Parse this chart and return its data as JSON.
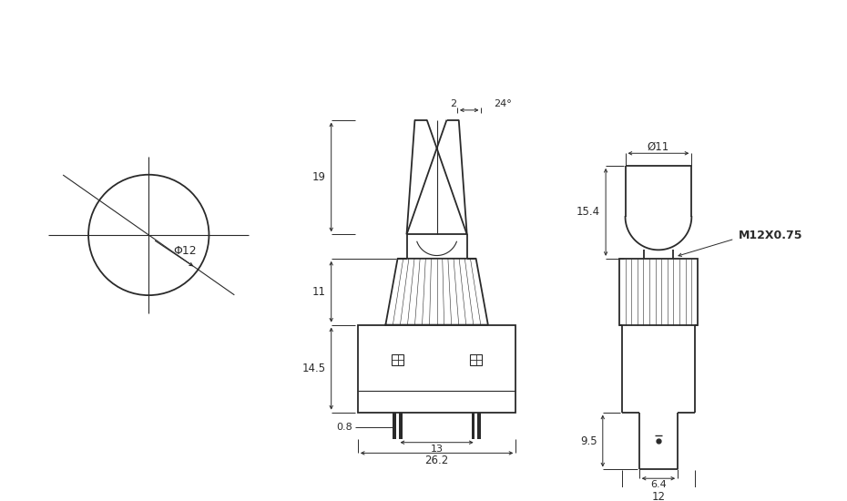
{
  "bg_color": "#ffffff",
  "line_color": "#2a2a2a",
  "dim_color": "#2a2a2a",
  "lw": 1.3,
  "thin_lw": 0.8,
  "dim_lw": 0.7,
  "annotations": {
    "phi12": "Φ12",
    "phi11": "Ø11",
    "angle": "24°",
    "dim2": "2",
    "dim19": "19",
    "dim11": "11",
    "dim14_5": "14.5",
    "dim0_8": "0.8",
    "dim13": "13",
    "dim26_2": "26.2",
    "dim6_4": "6.4",
    "dim15_4": "15.4",
    "dim9_5": "9.5",
    "dim12": "12",
    "m12x075": "M12X0.75"
  }
}
